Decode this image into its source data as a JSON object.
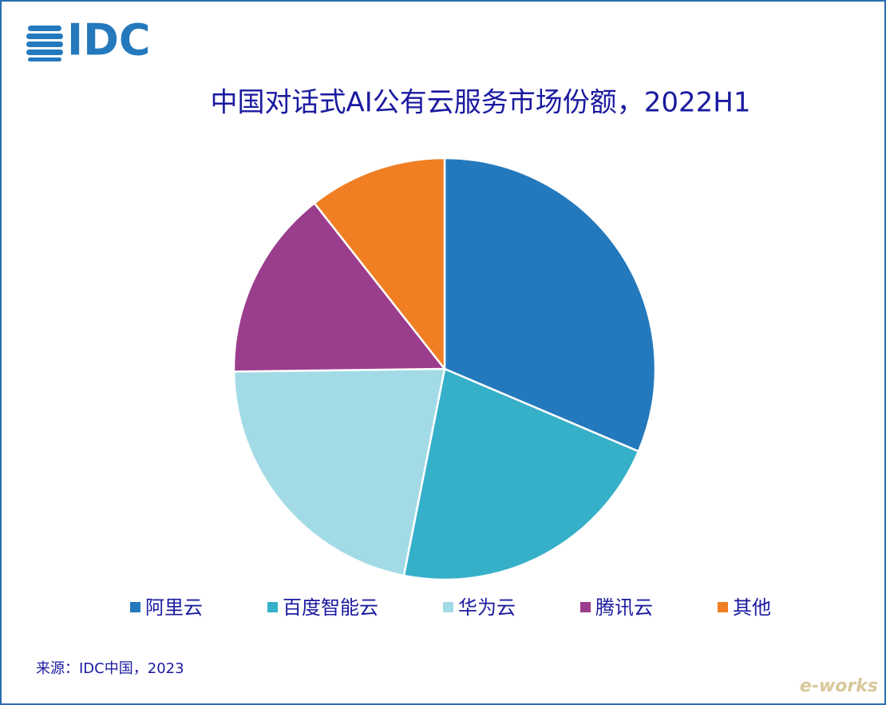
{
  "logo": "IDC",
  "watermark": "e-works",
  "chart_data": {
    "type": "pie",
    "title": "中国对话式AI公有云服务市场份额，2022H1",
    "categories": [
      "阿里云",
      "百度智能云",
      "华为云",
      "腾讯云",
      "其他"
    ],
    "values": [
      31.4,
      21.7,
      21.7,
      14.6,
      10.6
    ],
    "colors": [
      "#2479bd",
      "#36afc8",
      "#a2dbe6",
      "#9b3d8d",
      "#f07f23"
    ],
    "legend": "bottom",
    "source": "来源：IDC中国，2023"
  }
}
